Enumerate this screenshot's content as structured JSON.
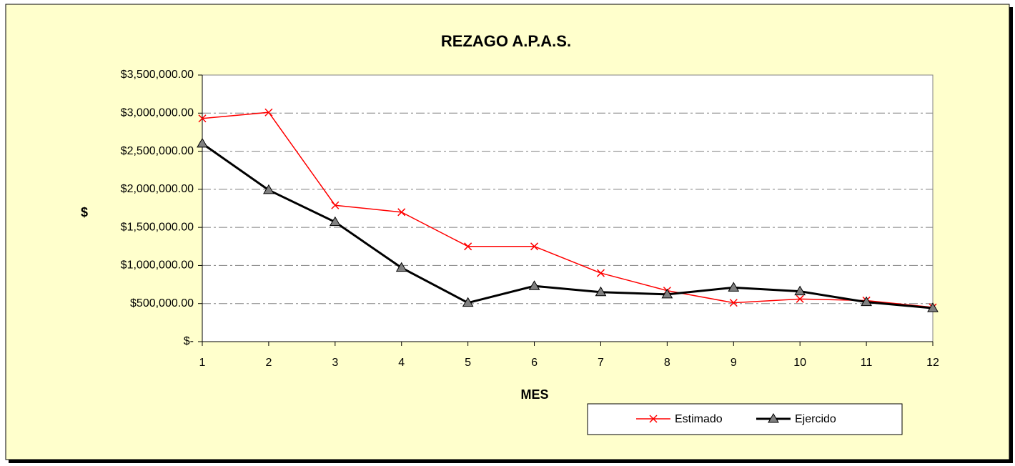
{
  "chart_data": {
    "type": "line",
    "title": "REZAGO A.P.A.S.",
    "x_label": "MES",
    "y_label": "$",
    "x": [
      1,
      2,
      3,
      4,
      5,
      6,
      7,
      8,
      9,
      10,
      11,
      12
    ],
    "xlim": [
      1,
      12
    ],
    "xticks": [
      1,
      2,
      3,
      4,
      5,
      6,
      7,
      8,
      9,
      10,
      11,
      12
    ],
    "ylim": [
      0,
      3500000
    ],
    "yticks": [
      {
        "value": 0,
        "label": "$-"
      },
      {
        "value": 500000,
        "label": "$500,000.00"
      },
      {
        "value": 1000000,
        "label": "$1,000,000.00"
      },
      {
        "value": 1500000,
        "label": "$1,500,000.00"
      },
      {
        "value": 2000000,
        "label": "$2,000,000.00"
      },
      {
        "value": 2500000,
        "label": "$2,500,000.00"
      },
      {
        "value": 3000000,
        "label": "$3,000,000.00"
      },
      {
        "value": 3500000,
        "label": "$3,500,000.00"
      }
    ],
    "grid": true,
    "series": [
      {
        "name": "Estimado",
        "color": "#ff0000",
        "marker": "x",
        "values": [
          2930000,
          3010000,
          1790000,
          1700000,
          1250000,
          1250000,
          900000,
          670000,
          510000,
          560000,
          540000,
          450000
        ]
      },
      {
        "name": "Ejercido",
        "color": "#000000",
        "marker": "triangle",
        "values": [
          2600000,
          1990000,
          1570000,
          970000,
          510000,
          730000,
          650000,
          620000,
          710000,
          660000,
          520000,
          440000
        ]
      }
    ]
  }
}
